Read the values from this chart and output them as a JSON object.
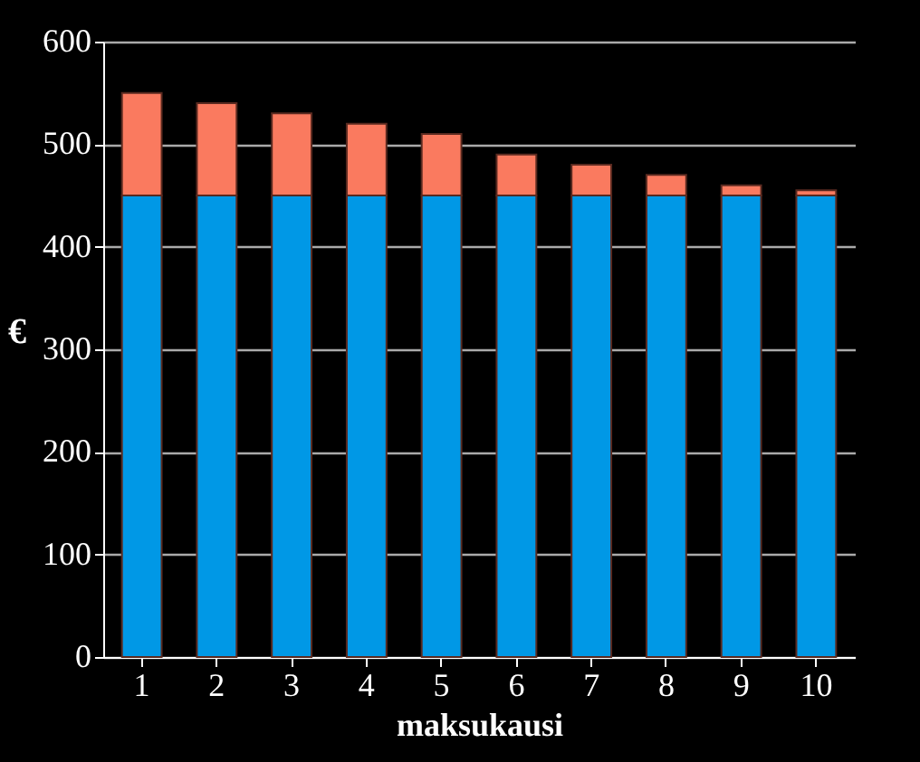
{
  "chart_data": {
    "type": "bar",
    "stacked": true,
    "xlabel": "maksukausi",
    "ylabel": "€",
    "categories": [
      "1",
      "2",
      "3",
      "4",
      "5",
      "6",
      "7",
      "8",
      "9",
      "10"
    ],
    "series": [
      {
        "color": "#0098e6",
        "values": [
          450,
          450,
          450,
          450,
          450,
          450,
          450,
          450,
          450,
          450
        ]
      },
      {
        "color": "#fa7a5f",
        "values": [
          100,
          90,
          80,
          70,
          60,
          40,
          30,
          20,
          10,
          5
        ]
      }
    ],
    "ylim": [
      0,
      600
    ],
    "yticks": [
      0,
      100,
      200,
      300,
      400,
      500,
      600
    ],
    "grid": "y"
  }
}
